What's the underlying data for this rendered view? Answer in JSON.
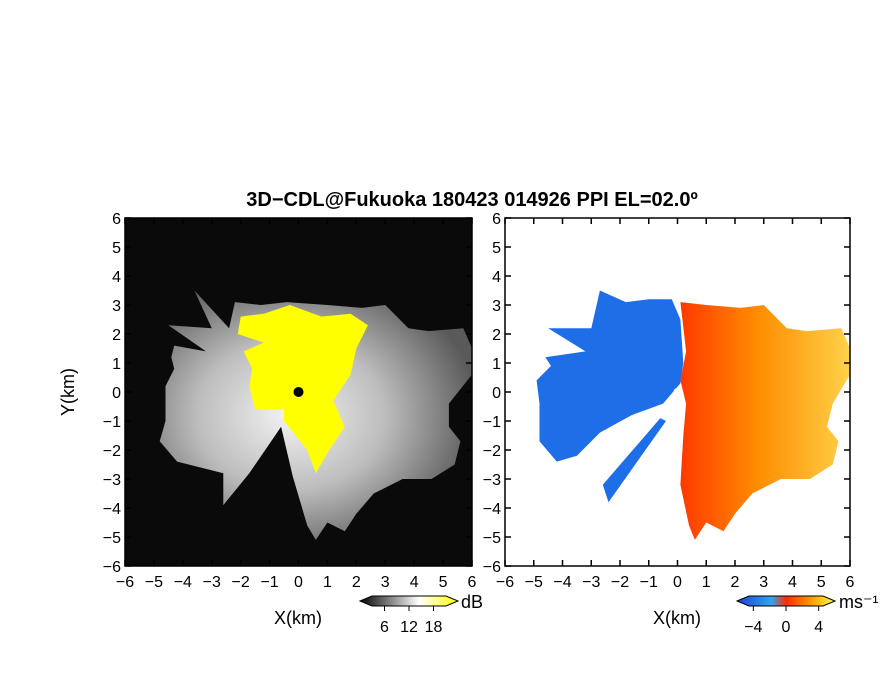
{
  "chart_data": [
    {
      "type": "heatmap",
      "panel": "reflectivity",
      "title": "3D−CDL@Fukuoka 180423 014926 PPI EL=02.0º",
      "xlabel": "X(km)",
      "ylabel": "Y(km)",
      "xlim": [
        -6,
        6
      ],
      "ylim": [
        -6,
        6
      ],
      "xticks": [
        -6,
        -5,
        -4,
        -3,
        -2,
        -1,
        0,
        1,
        2,
        3,
        4,
        5,
        6
      ],
      "yticks": [
        -6,
        -5,
        -4,
        -3,
        -2,
        -1,
        0,
        1,
        2,
        3,
        4,
        5,
        6
      ],
      "xtick_labels": [
        "−6",
        "−5",
        "−4",
        "−3",
        "−2",
        "−1",
        "0",
        "1",
        "2",
        "3",
        "4",
        "5",
        "6"
      ],
      "ytick_labels": [
        "−6",
        "−5",
        "−4",
        "−3",
        "−2",
        "−1",
        "0",
        "1",
        "2",
        "3",
        "4",
        "5",
        "6"
      ],
      "colorbar": {
        "unit": "dB",
        "range": [
          0,
          24
        ],
        "ticks": [
          6,
          12,
          18
        ],
        "tick_labels": [
          "6",
          "12",
          "18"
        ],
        "colors": [
          "#000000",
          "#ffffff",
          "#ffff00"
        ]
      },
      "background_color": "#0a0a0a",
      "saturated_color": "#ffff00",
      "radar_origin": [
        0,
        0
      ],
      "echo_outline_km": [
        [
          -3.6,
          3.5
        ],
        [
          -2.4,
          2.2
        ],
        [
          -2.2,
          3.1
        ],
        [
          -1.3,
          3.0
        ],
        [
          -0.4,
          3.1
        ],
        [
          1.0,
          3.0
        ],
        [
          2.2,
          2.9
        ],
        [
          3.0,
          3.0
        ],
        [
          3.8,
          2.2
        ],
        [
          4.5,
          2.1
        ],
        [
          5.7,
          2.2
        ],
        [
          6.0,
          1.5
        ],
        [
          6.0,
          0.6
        ],
        [
          5.2,
          -0.4
        ],
        [
          5.2,
          -1.2
        ],
        [
          5.6,
          -1.7
        ],
        [
          5.4,
          -2.5
        ],
        [
          4.6,
          -3.0
        ],
        [
          3.6,
          -3.0
        ],
        [
          2.6,
          -3.5
        ],
        [
          2.0,
          -4.2
        ],
        [
          1.6,
          -4.8
        ],
        [
          1.0,
          -4.5
        ],
        [
          0.6,
          -5.1
        ],
        [
          0.3,
          -4.6
        ],
        [
          -0.2,
          -2.9
        ],
        [
          -0.6,
          -1.2
        ],
        [
          -1.7,
          -2.8
        ],
        [
          -2.6,
          -3.9
        ],
        [
          -2.6,
          -2.8
        ],
        [
          -4.2,
          -2.4
        ],
        [
          -4.8,
          -1.7
        ],
        [
          -4.6,
          -1.0
        ],
        [
          -4.6,
          0.2
        ],
        [
          -4.3,
          0.8
        ],
        [
          -4.4,
          1.2
        ],
        [
          -4.3,
          1.6
        ],
        [
          -3.2,
          1.4
        ],
        [
          -4.5,
          2.3
        ],
        [
          -3.0,
          2.2
        ]
      ],
      "saturated_outline_km": [
        [
          -2.0,
          2.6
        ],
        [
          -1.2,
          2.7
        ],
        [
          -0.3,
          3.0
        ],
        [
          0.8,
          2.6
        ],
        [
          1.8,
          2.7
        ],
        [
          2.4,
          2.3
        ],
        [
          2.0,
          1.5
        ],
        [
          1.8,
          0.6
        ],
        [
          1.2,
          -0.3
        ],
        [
          1.6,
          -1.2
        ],
        [
          1.0,
          -2.1
        ],
        [
          0.6,
          -2.8
        ],
        [
          0.3,
          -2.0
        ],
        [
          -0.5,
          -1.0
        ],
        [
          -0.5,
          -0.6
        ],
        [
          -1.5,
          -0.6
        ],
        [
          -1.7,
          0.2
        ],
        [
          -1.6,
          0.8
        ],
        [
          -1.9,
          1.4
        ],
        [
          -1.2,
          1.7
        ],
        [
          -2.1,
          2.0
        ]
      ]
    },
    {
      "type": "heatmap",
      "panel": "doppler_velocity",
      "xlabel": "X(km)",
      "xlim": [
        -6,
        6
      ],
      "ylim": [
        -6,
        6
      ],
      "xticks": [
        -6,
        -5,
        -4,
        -3,
        -2,
        -1,
        0,
        1,
        2,
        3,
        4,
        5,
        6
      ],
      "yticks": [
        -6,
        -5,
        -4,
        -3,
        -2,
        -1,
        0,
        1,
        2,
        3,
        4,
        5,
        6
      ],
      "xtick_labels": [
        "−6",
        "−5",
        "−4",
        "−3",
        "−2",
        "−1",
        "0",
        "1",
        "2",
        "3",
        "4",
        "5",
        "6"
      ],
      "ytick_labels": [
        "−6",
        "−5",
        "−4",
        "−3",
        "−2",
        "−1",
        "0",
        "1",
        "2",
        "3",
        "4",
        "5",
        "6"
      ],
      "colorbar": {
        "unit": "ms⁻¹",
        "range": [
          -6,
          6
        ],
        "ticks": [
          -4,
          0,
          4
        ],
        "tick_labels": [
          "−4",
          "0",
          "4"
        ],
        "colors": [
          "#1f3fd6",
          "#2fa6f0",
          "#ff2a00",
          "#ff9a00",
          "#ffff40"
        ]
      },
      "background_color": "#ffffff",
      "approaching_color": "#1e6ee8",
      "receding_colors": [
        "#ff3800",
        "#ff8c00",
        "#ffd24a"
      ],
      "radar_origin": [
        0,
        0
      ],
      "negative_outline_km": [
        [
          -2.7,
          3.5
        ],
        [
          -1.8,
          3.1
        ],
        [
          -1.0,
          3.2
        ],
        [
          -0.2,
          3.2
        ],
        [
          0.1,
          2.5
        ],
        [
          0.2,
          1.0
        ],
        [
          0.1,
          0.3
        ],
        [
          -0.5,
          -0.4
        ],
        [
          -1.6,
          -0.8
        ],
        [
          -2.7,
          -1.4
        ],
        [
          -3.5,
          -2.2
        ],
        [
          -4.2,
          -2.4
        ],
        [
          -4.8,
          -1.7
        ],
        [
          -4.8,
          -0.4
        ],
        [
          -4.9,
          0.4
        ],
        [
          -4.4,
          0.9
        ],
        [
          -4.6,
          1.2
        ],
        [
          -3.2,
          1.4
        ],
        [
          -4.5,
          2.2
        ],
        [
          -3.0,
          2.2
        ]
      ],
      "negative_beam_km": [
        [
          -0.4,
          -1.0
        ],
        [
          -2.4,
          -3.8
        ],
        [
          -2.6,
          -3.2
        ],
        [
          -0.6,
          -0.9
        ]
      ],
      "positive_outline_km": [
        [
          0.1,
          3.1
        ],
        [
          1.0,
          3.0
        ],
        [
          2.2,
          2.9
        ],
        [
          3.0,
          3.0
        ],
        [
          3.8,
          2.2
        ],
        [
          4.5,
          2.1
        ],
        [
          5.7,
          2.2
        ],
        [
          6.0,
          1.5
        ],
        [
          6.0,
          0.6
        ],
        [
          5.4,
          -0.4
        ],
        [
          5.2,
          -1.2
        ],
        [
          5.6,
          -1.7
        ],
        [
          5.4,
          -2.5
        ],
        [
          4.6,
          -3.0
        ],
        [
          3.6,
          -3.0
        ],
        [
          2.6,
          -3.5
        ],
        [
          2.0,
          -4.2
        ],
        [
          1.6,
          -4.8
        ],
        [
          1.0,
          -4.5
        ],
        [
          0.6,
          -5.1
        ],
        [
          0.4,
          -4.6
        ],
        [
          0.1,
          -3.2
        ],
        [
          0.2,
          -1.5
        ],
        [
          0.3,
          -0.4
        ],
        [
          0.1,
          0.4
        ],
        [
          0.3,
          1.4
        ]
      ]
    }
  ]
}
